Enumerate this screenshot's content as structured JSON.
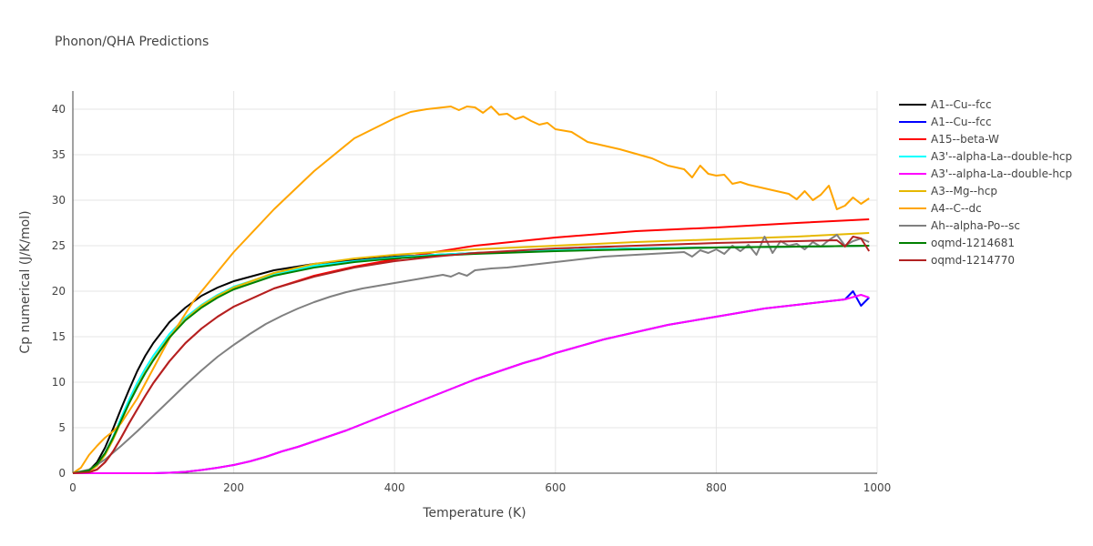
{
  "chart_data": {
    "type": "line",
    "title": "Phonon/QHA Predictions",
    "xlabel": "Temperature (K)",
    "ylabel": "Cp numerical (J/K/mol)",
    "xlim": [
      0,
      1000
    ],
    "ylim": [
      0,
      42
    ],
    "xticks": [
      0,
      200,
      400,
      600,
      800,
      1000
    ],
    "yticks": [
      0,
      5,
      10,
      15,
      20,
      25,
      30,
      35,
      40
    ],
    "grid": true,
    "legend_position": "right",
    "series": [
      {
        "name": "A1--Cu--fcc",
        "color": "#000000",
        "width": 2,
        "x": [
          0,
          20,
          30,
          40,
          50,
          60,
          70,
          80,
          90,
          100,
          120,
          140,
          160,
          180,
          200,
          250,
          300,
          350,
          400,
          450,
          500,
          600,
          700,
          800,
          900,
          990
        ],
        "y": [
          0,
          0.3,
          1.2,
          2.8,
          4.9,
          7.1,
          9.2,
          11.2,
          12.9,
          14.3,
          16.6,
          18.2,
          19.5,
          20.4,
          21.1,
          22.3,
          23.0,
          23.4,
          23.8,
          24.0,
          24.2,
          24.5,
          24.7,
          24.8,
          24.9,
          25.0
        ]
      },
      {
        "name": "A1--Cu--fcc",
        "color": "#0000ff",
        "width": 2,
        "x": [
          0,
          50,
          100,
          120,
          140,
          160,
          180,
          200,
          220,
          240,
          260,
          280,
          300,
          320,
          340,
          360,
          380,
          400,
          420,
          440,
          460,
          480,
          500,
          520,
          540,
          560,
          580,
          600,
          620,
          640,
          660,
          680,
          700,
          720,
          740,
          760,
          780,
          800,
          820,
          840,
          860,
          880,
          900,
          920,
          940,
          960,
          970,
          980,
          990
        ],
        "y": [
          0,
          0,
          0,
          0.05,
          0.15,
          0.35,
          0.6,
          0.9,
          1.3,
          1.8,
          2.4,
          2.9,
          3.5,
          4.1,
          4.7,
          5.4,
          6.1,
          6.8,
          7.5,
          8.2,
          8.9,
          9.6,
          10.3,
          10.9,
          11.5,
          12.1,
          12.6,
          13.2,
          13.7,
          14.2,
          14.7,
          15.1,
          15.5,
          15.9,
          16.3,
          16.6,
          16.9,
          17.2,
          17.5,
          17.8,
          18.1,
          18.3,
          18.5,
          18.7,
          18.9,
          19.1,
          20.0,
          18.4,
          19.3
        ]
      },
      {
        "name": "A15--beta-W",
        "color": "#ff0000",
        "width": 2,
        "x": [
          0,
          20,
          30,
          40,
          50,
          60,
          70,
          80,
          90,
          100,
          120,
          140,
          160,
          180,
          200,
          250,
          300,
          350,
          400,
          450,
          500,
          600,
          700,
          800,
          900,
          990
        ],
        "y": [
          0,
          0.1,
          0.4,
          1.2,
          2.4,
          3.9,
          5.5,
          7.0,
          8.5,
          9.9,
          12.3,
          14.3,
          15.9,
          17.2,
          18.3,
          20.3,
          21.7,
          22.7,
          23.5,
          24.3,
          25.0,
          25.9,
          26.6,
          27.0,
          27.5,
          27.9
        ]
      },
      {
        "name": "A3'--alpha-La--double-hcp",
        "color": "#00ffff",
        "width": 2,
        "x": [
          0,
          20,
          30,
          40,
          50,
          60,
          70,
          80,
          90,
          100,
          120,
          140,
          160,
          180,
          200,
          250,
          300,
          350,
          400,
          450,
          500,
          600,
          700,
          800,
          900,
          990
        ],
        "y": [
          0,
          0.2,
          0.9,
          2.2,
          4.0,
          6.1,
          8.1,
          9.9,
          11.5,
          12.9,
          15.3,
          17.1,
          18.5,
          19.6,
          20.5,
          21.9,
          22.8,
          23.3,
          23.7,
          24.0,
          24.2,
          24.5,
          24.7,
          24.8,
          24.9,
          25.0
        ]
      },
      {
        "name": "A3'--alpha-La--double-hcp",
        "color": "#ff00ff",
        "width": 2,
        "x": [
          0,
          50,
          100,
          120,
          140,
          160,
          180,
          200,
          220,
          240,
          260,
          280,
          300,
          320,
          340,
          360,
          380,
          400,
          420,
          440,
          460,
          480,
          500,
          520,
          540,
          560,
          580,
          600,
          620,
          640,
          660,
          680,
          700,
          720,
          740,
          760,
          780,
          800,
          820,
          840,
          860,
          880,
          900,
          920,
          940,
          960,
          980,
          990
        ],
        "y": [
          0,
          0,
          0,
          0.05,
          0.15,
          0.35,
          0.6,
          0.9,
          1.3,
          1.8,
          2.4,
          2.9,
          3.5,
          4.1,
          4.7,
          5.4,
          6.1,
          6.8,
          7.5,
          8.2,
          8.9,
          9.6,
          10.3,
          10.9,
          11.5,
          12.1,
          12.6,
          13.2,
          13.7,
          14.2,
          14.7,
          15.1,
          15.5,
          15.9,
          16.3,
          16.6,
          16.9,
          17.2,
          17.5,
          17.8,
          18.1,
          18.3,
          18.5,
          18.7,
          18.9,
          19.1,
          19.6,
          19.3
        ]
      },
      {
        "name": "A3--Mg--hcp",
        "color": "#e6b800",
        "width": 2,
        "x": [
          0,
          20,
          30,
          40,
          50,
          60,
          70,
          80,
          90,
          100,
          120,
          140,
          160,
          180,
          200,
          250,
          300,
          350,
          400,
          450,
          500,
          600,
          700,
          800,
          900,
          990
        ],
        "y": [
          0,
          0.2,
          0.8,
          2.0,
          3.7,
          5.7,
          7.7,
          9.5,
          11.1,
          12.5,
          15.0,
          16.9,
          18.4,
          19.5,
          20.4,
          22.0,
          23.0,
          23.6,
          24.0,
          24.3,
          24.6,
          25.0,
          25.4,
          25.7,
          26.0,
          26.4
        ]
      },
      {
        "name": "A4--C--dc",
        "color": "#ffa500",
        "width": 2,
        "x": [
          0,
          10,
          20,
          30,
          40,
          50,
          60,
          80,
          100,
          120,
          150,
          200,
          250,
          300,
          350,
          400,
          420,
          440,
          460,
          470,
          480,
          490,
          500,
          510,
          520,
          530,
          540,
          550,
          560,
          570,
          580,
          590,
          600,
          620,
          640,
          660,
          680,
          700,
          720,
          740,
          760,
          770,
          780,
          790,
          800,
          810,
          820,
          830,
          840,
          850,
          860,
          870,
          880,
          890,
          900,
          910,
          920,
          930,
          940,
          950,
          960,
          970,
          980,
          990
        ],
        "y": [
          0,
          0.6,
          2.0,
          3.0,
          3.9,
          4.6,
          5.5,
          8.2,
          11.5,
          14.8,
          18.9,
          24.3,
          29.0,
          33.2,
          36.8,
          39.0,
          39.7,
          40.0,
          40.2,
          40.3,
          39.9,
          40.3,
          40.2,
          39.6,
          40.3,
          39.4,
          39.5,
          38.9,
          39.2,
          38.7,
          38.3,
          38.5,
          37.8,
          37.5,
          36.4,
          36.0,
          35.6,
          35.1,
          34.6,
          33.8,
          33.4,
          32.5,
          33.8,
          32.9,
          32.7,
          32.8,
          31.8,
          32.0,
          31.7,
          31.5,
          31.3,
          31.1,
          30.9,
          30.7,
          30.1,
          31.0,
          30.0,
          30.6,
          31.6,
          29.0,
          29.4,
          30.3,
          29.6,
          30.2
        ]
      },
      {
        "name": "Ah--alpha-Po--sc",
        "color": "#808080",
        "width": 2,
        "x": [
          0,
          20,
          40,
          60,
          80,
          100,
          120,
          140,
          160,
          180,
          200,
          220,
          240,
          260,
          280,
          300,
          320,
          340,
          360,
          380,
          400,
          420,
          440,
          460,
          470,
          480,
          490,
          500,
          520,
          540,
          560,
          580,
          600,
          620,
          640,
          660,
          680,
          700,
          720,
          740,
          760,
          770,
          780,
          790,
          800,
          810,
          820,
          830,
          840,
          850,
          860,
          870,
          880,
          890,
          900,
          910,
          920,
          930,
          940,
          950,
          960,
          970,
          980,
          990
        ],
        "y": [
          0,
          0.4,
          1.5,
          3.0,
          4.6,
          6.3,
          8.0,
          9.7,
          11.3,
          12.8,
          14.1,
          15.3,
          16.4,
          17.3,
          18.1,
          18.8,
          19.4,
          19.9,
          20.3,
          20.6,
          20.9,
          21.2,
          21.5,
          21.8,
          21.6,
          22.0,
          21.7,
          22.3,
          22.5,
          22.6,
          22.8,
          23.0,
          23.2,
          23.4,
          23.6,
          23.8,
          23.9,
          24.0,
          24.1,
          24.2,
          24.3,
          23.8,
          24.5,
          24.2,
          24.6,
          24.1,
          25.0,
          24.4,
          25.1,
          24.0,
          26.0,
          24.2,
          25.5,
          25.0,
          25.2,
          24.6,
          25.4,
          24.9,
          25.6,
          26.2,
          25.0,
          25.5,
          25.8,
          25.4
        ]
      },
      {
        "name": "oqmd-1214681",
        "color": "#008000",
        "width": 2,
        "x": [
          0,
          20,
          30,
          40,
          50,
          60,
          70,
          80,
          90,
          100,
          120,
          140,
          160,
          180,
          200,
          250,
          300,
          350,
          400,
          450,
          500,
          600,
          700,
          800,
          900,
          990
        ],
        "y": [
          0,
          0.3,
          1.0,
          2.2,
          3.9,
          5.8,
          7.7,
          9.4,
          11.0,
          12.4,
          14.9,
          16.8,
          18.2,
          19.3,
          20.2,
          21.7,
          22.6,
          23.2,
          23.6,
          23.9,
          24.1,
          24.4,
          24.6,
          24.8,
          24.9,
          25.0
        ]
      },
      {
        "name": "oqmd-1214770",
        "color": "#b22222",
        "width": 2,
        "x": [
          0,
          20,
          30,
          40,
          50,
          60,
          70,
          80,
          90,
          100,
          120,
          140,
          160,
          180,
          200,
          250,
          300,
          350,
          400,
          450,
          500,
          600,
          700,
          800,
          900,
          950,
          960,
          970,
          980,
          990
        ],
        "y": [
          0,
          0.1,
          0.4,
          1.2,
          2.4,
          3.9,
          5.5,
          7.0,
          8.5,
          9.9,
          12.3,
          14.3,
          15.9,
          17.2,
          18.3,
          20.3,
          21.6,
          22.6,
          23.3,
          23.8,
          24.2,
          24.7,
          25.0,
          25.3,
          25.5,
          25.6,
          24.9,
          26.0,
          25.8,
          24.4
        ]
      }
    ]
  }
}
